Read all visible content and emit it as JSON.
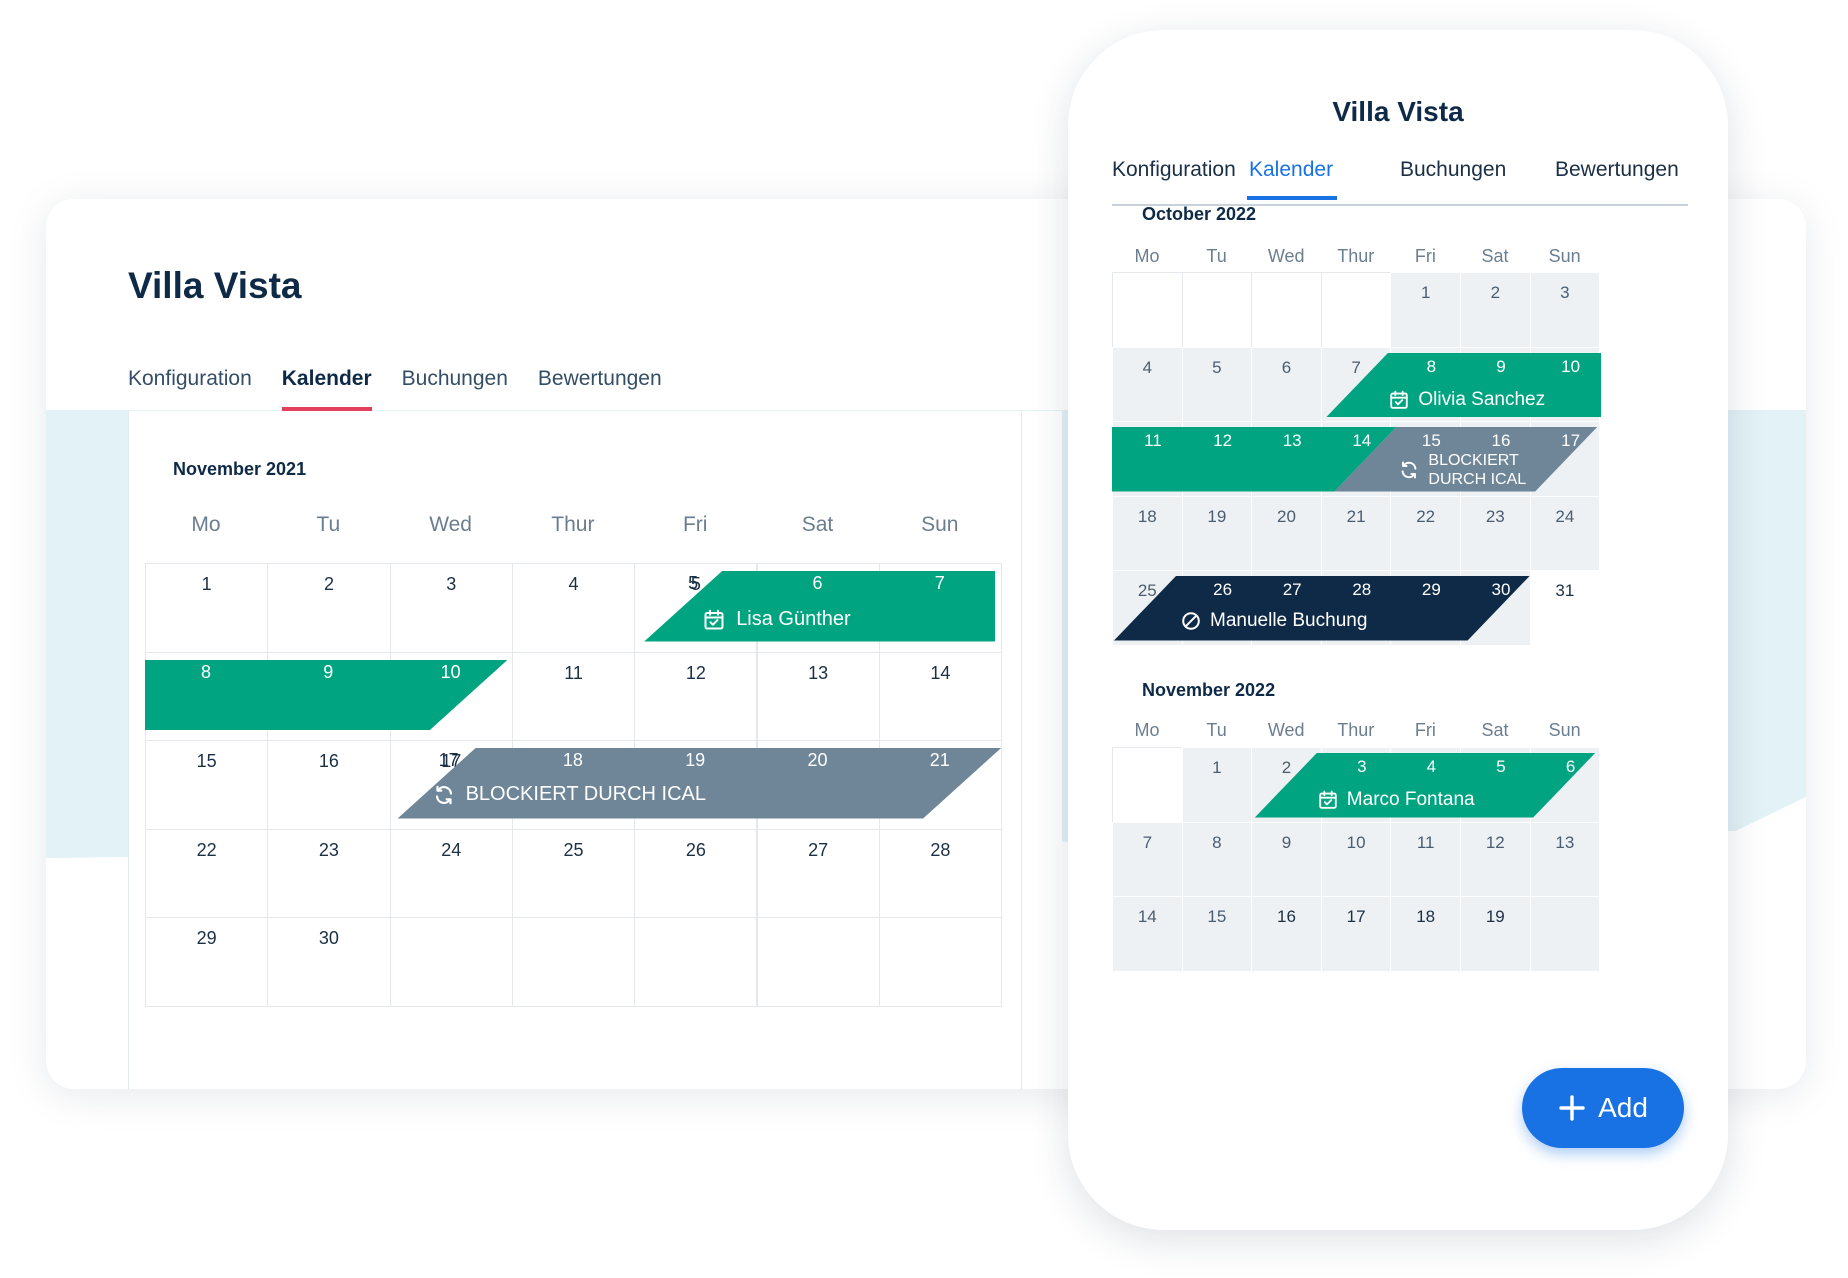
{
  "desktop": {
    "title": "Villa Vista",
    "tabs": [
      {
        "label": "Konfiguration",
        "active": false
      },
      {
        "label": "Kalender",
        "active": true
      },
      {
        "label": "Buchungen",
        "active": false
      },
      {
        "label": "Bewertungen",
        "active": false
      }
    ],
    "month": "November 2021",
    "weekdays": [
      "Mo",
      "Tu",
      "Wed",
      "Thur",
      "Fri",
      "Sat",
      "Sun"
    ],
    "first_weekday_offset": 0,
    "days": 30,
    "events": [
      {
        "label": "Lisa Günther",
        "type": "booking",
        "start_day": 5,
        "end_day": 7,
        "icon": "calendar-check-icon",
        "color": "#00a481"
      },
      {
        "label": "",
        "type": "booking",
        "start_day": 8,
        "end_day": 10,
        "color": "#00a481"
      },
      {
        "label": "BLOCKIERT DURCH ICAL",
        "type": "ical-block",
        "start_day": 17,
        "end_day": 21,
        "icon": "sync-icon",
        "color": "#6f8698"
      }
    ]
  },
  "mobile": {
    "title": "Villa Vista",
    "tabs": [
      {
        "label": "Konfiguration",
        "active": false
      },
      {
        "label": "Kalender",
        "active": true
      },
      {
        "label": "Buchungen",
        "active": false
      },
      {
        "label": "Bewertungen",
        "active": false
      }
    ],
    "weekdays": [
      "Mo",
      "Tu",
      "Wed",
      "Thur",
      "Fri",
      "Sat",
      "Sun"
    ],
    "months": [
      {
        "name": "October 2022",
        "first_weekday_offset": 4,
        "days": 31,
        "events": [
          {
            "label": "Olivia Sanchez",
            "type": "booking",
            "start_day": 8,
            "end_day": 10,
            "icon": "calendar-check-icon",
            "color": "#00a481"
          },
          {
            "label": "",
            "type": "booking",
            "start_day": 11,
            "end_day": 14,
            "color": "#00a481"
          },
          {
            "label": "BLOCKIERT\nDURCH ICAL",
            "label_line1": "BLOCKIERT",
            "label_line2": "DURCH ICAL",
            "type": "ical-block",
            "start_day": 15,
            "end_day": 17,
            "icon": "sync-icon",
            "color": "#6f8698"
          },
          {
            "label": "Manuelle Buchung",
            "type": "manual",
            "start_day": 26,
            "end_day": 30,
            "icon": "blocked-icon",
            "color": "#0e2a47"
          }
        ]
      },
      {
        "name": "November 2022",
        "first_weekday_offset": 1,
        "days": 19,
        "events": [
          {
            "label": "Marco Fontana",
            "type": "booking",
            "start_day": 3,
            "end_day": 6,
            "icon": "calendar-check-icon",
            "color": "#00a481"
          }
        ]
      }
    ],
    "add_button": {
      "label": "Add",
      "icon": "plus-icon"
    }
  },
  "colors": {
    "booking": "#00a481",
    "ical": "#6f8698",
    "manual": "#0e2a47",
    "accent_desktop_tab": "#e23f5b",
    "accent_mobile": "#1872e3",
    "background_band": "#e3f2f6"
  }
}
